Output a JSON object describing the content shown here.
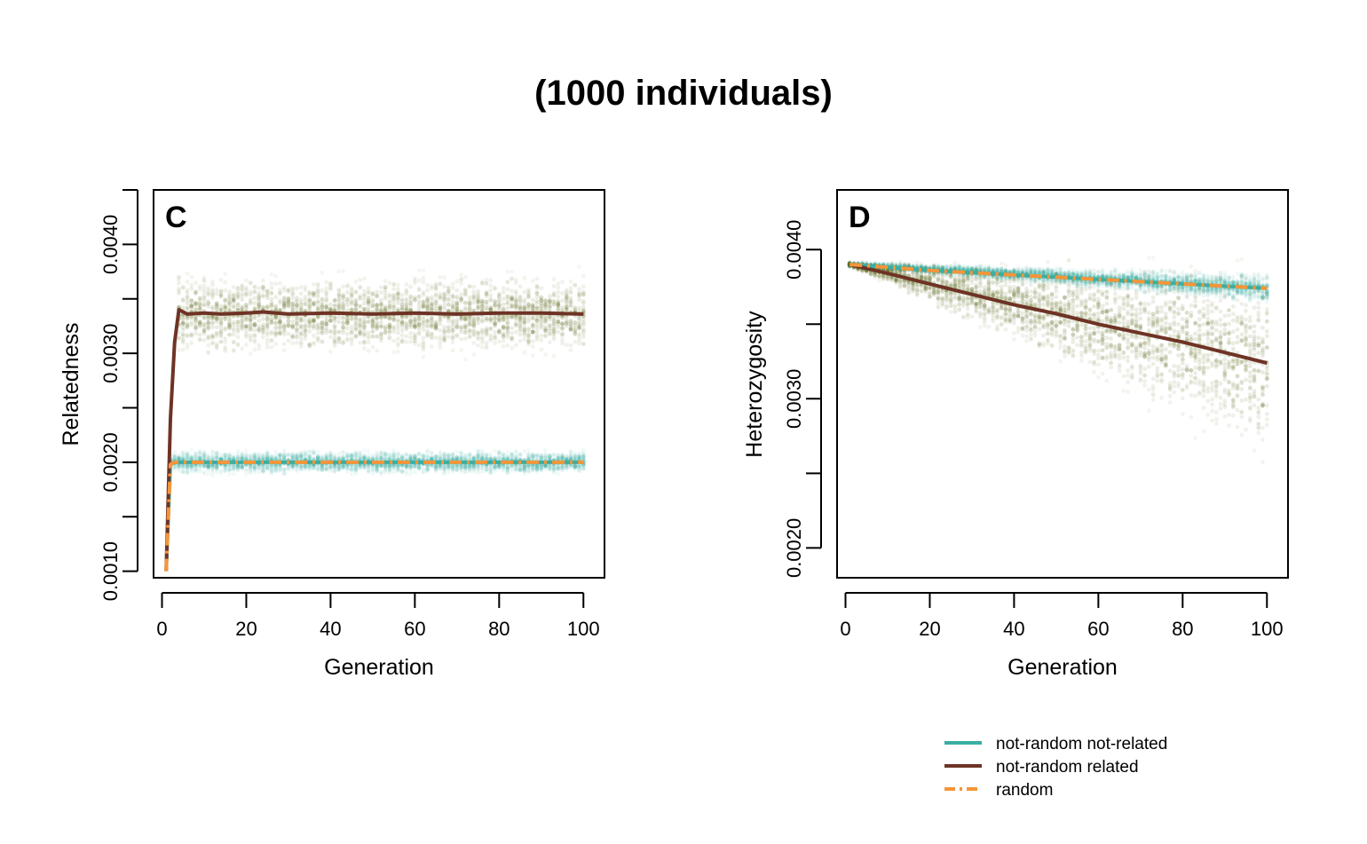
{
  "figure": {
    "title": "(1000 individuals)"
  },
  "colors": {
    "not_random_not_related": "#3aaea3",
    "not_random_related": "#6e3325",
    "random": "#f5953a",
    "cloud": "#5e6b1f"
  },
  "legend": [
    {
      "label": "not-random not-related",
      "key": "not_random_not_related",
      "dash": "solid"
    },
    {
      "label": "not-random related",
      "key": "not_random_related",
      "dash": "solid"
    },
    {
      "label": "random",
      "key": "random",
      "dash": "dashdot"
    }
  ],
  "chart_data": [
    {
      "type": "line",
      "panel": "C",
      "xlabel": "Generation",
      "ylabel": "Relatedness",
      "xlim": [
        -2,
        105
      ],
      "ylim": [
        0.00094,
        0.0045
      ],
      "xticks": [
        0,
        20,
        40,
        60,
        80,
        100
      ],
      "xtick_labels": [
        "0",
        "20",
        "40",
        "60",
        "80",
        "100"
      ],
      "yticks": [
        0.001,
        0.0015,
        0.002,
        0.0025,
        0.003,
        0.0035,
        0.004,
        0.0045
      ],
      "ytick_labels": [
        "0.0010",
        "",
        "0.0020",
        "",
        "0.0030",
        "",
        "0.0040",
        ""
      ],
      "grid": false,
      "series": [
        {
          "name": "not-random not-related",
          "key": "not_random_not_related",
          "dash": "solid",
          "x": [
            1,
            2,
            3,
            100
          ],
          "y": [
            0.001,
            0.00198,
            0.002,
            0.002
          ]
        },
        {
          "name": "not-random related",
          "key": "not_random_related",
          "dash": "solid",
          "x": [
            1,
            2,
            3,
            4,
            6,
            10,
            14,
            20,
            24,
            30,
            40,
            50,
            60,
            70,
            80,
            90,
            100
          ],
          "y": [
            0.001,
            0.0024,
            0.0031,
            0.0034,
            0.00336,
            0.00337,
            0.00336,
            0.00337,
            0.00338,
            0.00336,
            0.00337,
            0.00336,
            0.00337,
            0.00336,
            0.00337,
            0.00337,
            0.00336
          ]
        },
        {
          "name": "random",
          "key": "random",
          "dash": "dashdot",
          "x": [
            1,
            2,
            3,
            100
          ],
          "y": [
            0.001,
            0.00198,
            0.002,
            0.002
          ]
        }
      ],
      "clouds": [
        {
          "key": "not_random_not_related",
          "from_x": 2,
          "center": 0.002,
          "spread": 0.00013
        },
        {
          "key": "not_random_related",
          "from_x": 4,
          "center": 0.00336,
          "spread": 0.00045
        }
      ]
    },
    {
      "type": "line",
      "panel": "D",
      "xlabel": "Generation",
      "ylabel": "Heterozygosity",
      "xlim": [
        -2,
        105
      ],
      "ylim": [
        0.0018,
        0.0044
      ],
      "xticks": [
        0,
        20,
        40,
        60,
        80,
        100
      ],
      "xtick_labels": [
        "0",
        "20",
        "40",
        "60",
        "80",
        "100"
      ],
      "yticks": [
        0.002,
        0.0025,
        0.003,
        0.0035,
        0.004
      ],
      "ytick_labels": [
        "0.0020",
        "",
        "0.0030",
        "",
        "0.0040"
      ],
      "grid": false,
      "series": [
        {
          "name": "not-random not-related",
          "key": "not_random_not_related",
          "dash": "solid",
          "x": [
            1,
            20,
            40,
            60,
            80,
            100
          ],
          "y": [
            0.0039,
            0.00386,
            0.00383,
            0.0038,
            0.00377,
            0.00374
          ]
        },
        {
          "name": "not-random related",
          "key": "not_random_related",
          "dash": "solid",
          "x": [
            1,
            10,
            20,
            30,
            40,
            50,
            60,
            70,
            80,
            90,
            100
          ],
          "y": [
            0.0039,
            0.00384,
            0.00377,
            0.0037,
            0.00363,
            0.00357,
            0.0035,
            0.00344,
            0.00338,
            0.00331,
            0.00324
          ]
        },
        {
          "name": "random",
          "key": "random",
          "dash": "dashdot",
          "x": [
            1,
            20,
            40,
            60,
            80,
            100
          ],
          "y": [
            0.0039,
            0.00386,
            0.00383,
            0.0038,
            0.00377,
            0.00374
          ]
        }
      ],
      "clouds": [
        {
          "key": "not_random_not_related",
          "from_x": 1,
          "center_start": 0.0039,
          "center_end": 0.00374,
          "spread_start": 2e-05,
          "spread_end": 0.00012
        },
        {
          "key": "not_random_related",
          "from_x": 1,
          "center_start": 0.0039,
          "center_end": 0.00324,
          "spread_start": 2e-05,
          "spread_end": 0.0008
        }
      ]
    }
  ]
}
